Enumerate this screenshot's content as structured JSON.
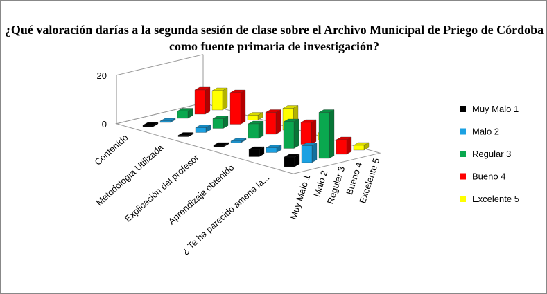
{
  "chart_data": {
    "type": "bar3d",
    "title": "¿Qué valoración darías a la segunda sesión de clase sobre el Archivo Municipal de Priego de Córdoba como fuente primaria de investigación?",
    "categories": [
      "Contenido",
      "Metodología Utilizada",
      "Explicación del profesor",
      "Aprendizaje obtenido",
      "¿ Te ha parecido amena la..."
    ],
    "depth_categories": [
      "Muy Malo 1",
      "Malo 2",
      "Regular 3",
      "Bueno 4",
      "Excelente 5"
    ],
    "series": [
      {
        "name": "Muy Malo 1",
        "color": "#000000",
        "values": [
          0,
          0,
          0,
          3,
          4
        ]
      },
      {
        "name": "Malo 2",
        "color": "#1ba1e2",
        "values": [
          0,
          2,
          0,
          2,
          7
        ]
      },
      {
        "name": "Regular 3",
        "color": "#0aa84f",
        "values": [
          3,
          4,
          6,
          11,
          19
        ]
      },
      {
        "name": "Bueno 4",
        "color": "#ff0000",
        "values": [
          10,
          13,
          9,
          9,
          6
        ]
      },
      {
        "name": "Excelente 5",
        "color": "#ffff00",
        "values": [
          8,
          2,
          9,
          3,
          2
        ]
      }
    ],
    "ylim": [
      0,
      20
    ],
    "yticks": [
      0,
      20
    ],
    "grid": true,
    "legend": "right"
  }
}
